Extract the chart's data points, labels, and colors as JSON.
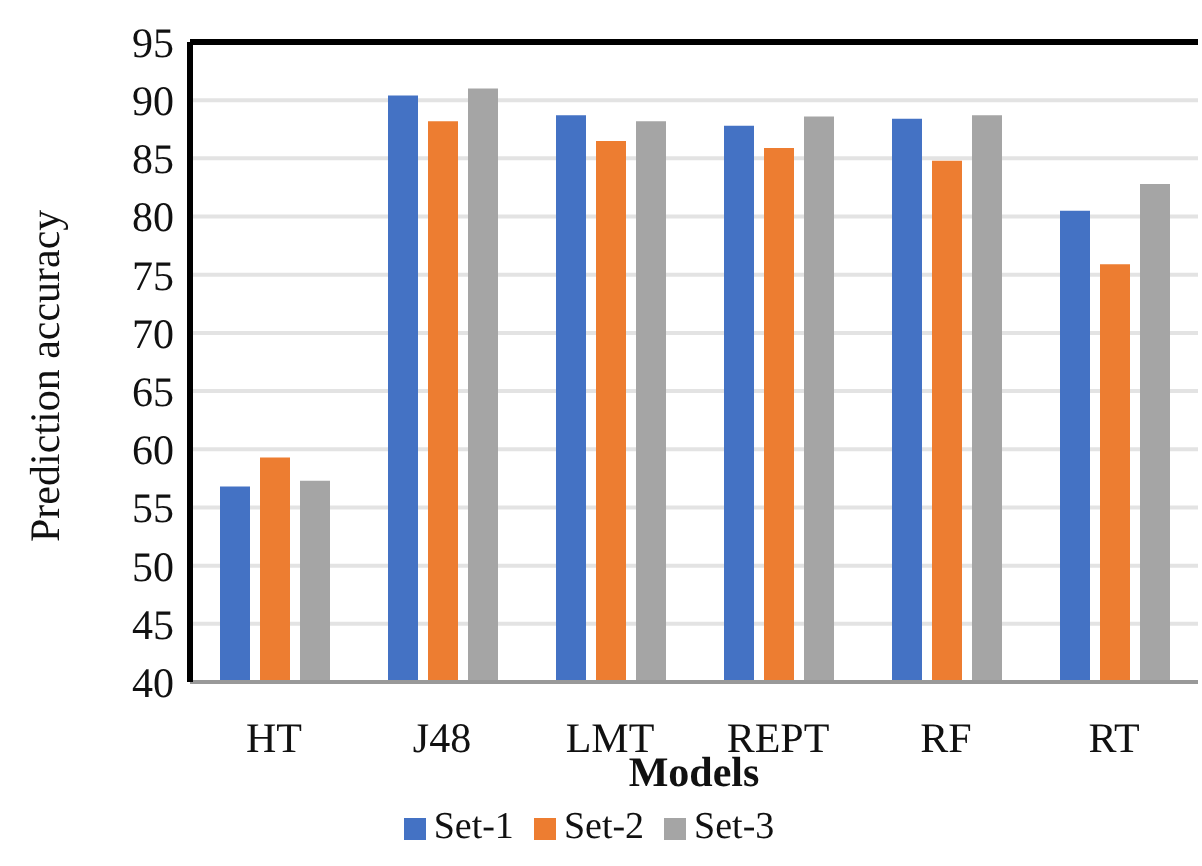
{
  "chart_data": {
    "type": "bar",
    "xlabel": "Models",
    "ylabel": "Prediction accuracy",
    "categories": [
      "HT",
      "J48",
      "LMT",
      "REPT",
      "RF",
      "RT"
    ],
    "series": [
      {
        "name": "Set-1",
        "color": "#4472c4",
        "values": [
          56.8,
          90.4,
          88.7,
          87.8,
          88.4,
          80.5
        ]
      },
      {
        "name": "Set-2",
        "color": "#ed7d31",
        "values": [
          59.3,
          88.2,
          86.5,
          85.9,
          84.8,
          75.9
        ]
      },
      {
        "name": "Set-3",
        "color": "#a5a5a5",
        "values": [
          57.3,
          91.0,
          88.2,
          88.6,
          88.7,
          82.8
        ]
      }
    ],
    "ylim": [
      40,
      95
    ],
    "yticks": [
      40,
      45,
      50,
      55,
      60,
      65,
      70,
      75,
      80,
      85,
      90,
      95
    ],
    "grid": "y",
    "legend": "bottom"
  }
}
